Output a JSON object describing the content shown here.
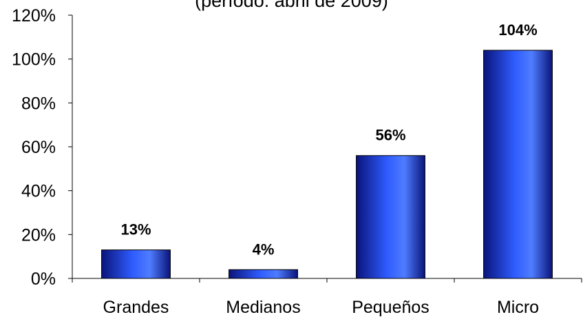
{
  "chart_data": {
    "type": "bar",
    "title": "(período: abril de 2009)",
    "categories": [
      "Grandes",
      "Medianos",
      "Pequeños",
      "Micro"
    ],
    "values": [
      13,
      4,
      56,
      104
    ],
    "data_labels": [
      "13%",
      "4%",
      "56%",
      "104%"
    ],
    "ylim": [
      0,
      120
    ],
    "yticks": [
      0,
      20,
      40,
      60,
      80,
      100,
      120
    ],
    "ytick_labels": [
      "0%",
      "20%",
      "40%",
      "60%",
      "80%",
      "100%",
      "120%"
    ],
    "xlabel": "",
    "ylabel": "",
    "grid": false,
    "legend": "none",
    "colors": {
      "bar_dark": "#0a147a",
      "bar_mid": "#2f5cff",
      "bar_light": "#4f7dff",
      "axis": "#000000"
    }
  }
}
